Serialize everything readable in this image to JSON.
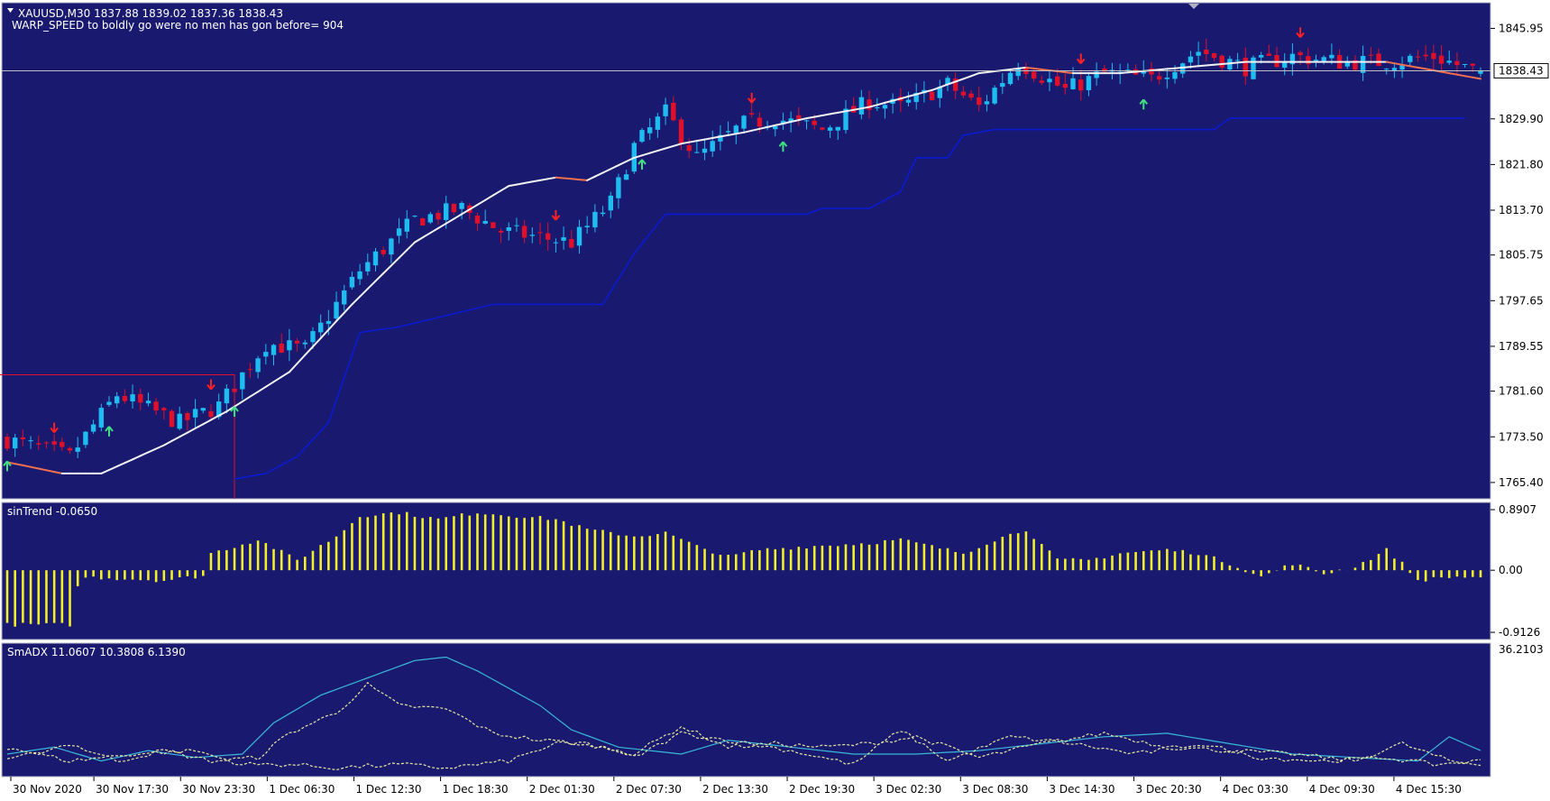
{
  "header": {
    "symbol_line": "XAUUSD,M30  1837.88 1839.02 1837.36 1838.43",
    "indicator_line": "WARP_SPEED to boldly go were no men has gon before= 904"
  },
  "colors": {
    "background": "#191970",
    "bull": "#1ebcf0",
    "bear": "#e0102a",
    "ma": "#f0f0f0",
    "ma_bear": "#f07050",
    "stop_line": "#0a1ad0",
    "histogram": "#f2ee2a",
    "adx_line": "#3ab8d8",
    "di_lines": "#e8e8a0",
    "price_tag_bg": "#ffffff"
  },
  "chart_data": [
    {
      "type": "candlestick",
      "symbol": "XAUUSD",
      "timeframe": "M30",
      "ohlc_last": {
        "open": 1837.88,
        "high": 1839.02,
        "low": 1837.36,
        "close": 1838.43
      },
      "ylim": [
        1762.5,
        1850.5
      ],
      "y_ticks": [
        "1845.95",
        "1838.43",
        "1829.90",
        "1821.80",
        "1813.70",
        "1805.75",
        "1797.65",
        "1789.55",
        "1781.60",
        "1773.50",
        "1765.40"
      ],
      "current_price": "1838.43",
      "x_ticks": [
        "30 Nov 2020",
        "30 Nov 17:30",
        "30 Nov 23:30",
        "1 Dec 06:30",
        "1 Dec 12:30",
        "1 Dec 18:30",
        "2 Dec 01:30",
        "2 Dec 07:30",
        "2 Dec 13:30",
        "2 Dec 19:30",
        "3 Dec 02:30",
        "3 Dec 08:30",
        "3 Dec 14:30",
        "3 Dec 20:30",
        "4 Dec 03:30",
        "4 Dec 09:30",
        "4 Dec 15:30"
      ],
      "close_path": [
        [
          0,
          1773
        ],
        [
          8,
          1770
        ],
        [
          14,
          1781
        ],
        [
          22,
          1776
        ],
        [
          27,
          1779
        ],
        [
          33,
          1790
        ],
        [
          38,
          1789
        ],
        [
          45,
          1803
        ],
        [
          52,
          1812
        ],
        [
          58,
          1814
        ],
        [
          63,
          1810
        ],
        [
          72,
          1808
        ],
        [
          77,
          1815
        ],
        [
          80,
          1825
        ],
        [
          84,
          1831
        ],
        [
          88,
          1823
        ],
        [
          94,
          1829
        ],
        [
          98,
          1830
        ],
        [
          104,
          1828
        ],
        [
          110,
          1833
        ],
        [
          114,
          1832
        ],
        [
          120,
          1836
        ],
        [
          124,
          1832
        ],
        [
          129,
          1840
        ],
        [
          135,
          1835
        ],
        [
          140,
          1838
        ],
        [
          146,
          1837
        ],
        [
          152,
          1842
        ],
        [
          158,
          1839
        ],
        [
          164,
          1841
        ],
        [
          170,
          1840
        ],
        [
          176,
          1840
        ],
        [
          182,
          1841
        ],
        [
          188,
          1838
        ]
      ],
      "moving_average": [
        [
          0,
          1769
        ],
        [
          7,
          1767
        ],
        [
          12,
          1767
        ],
        [
          20,
          1772
        ],
        [
          28,
          1778
        ],
        [
          36,
          1785
        ],
        [
          44,
          1797
        ],
        [
          52,
          1808
        ],
        [
          58,
          1813
        ],
        [
          64,
          1818
        ],
        [
          70,
          1819.5
        ],
        [
          74,
          1819
        ],
        [
          80,
          1823
        ],
        [
          86,
          1825.5
        ],
        [
          94,
          1827.5
        ],
        [
          102,
          1830
        ],
        [
          110,
          1832
        ],
        [
          118,
          1835
        ],
        [
          124,
          1838
        ],
        [
          130,
          1839
        ],
        [
          136,
          1838
        ],
        [
          142,
          1838
        ],
        [
          150,
          1839
        ],
        [
          158,
          1840
        ],
        [
          164,
          1840
        ],
        [
          170,
          1840
        ],
        [
          176,
          1840
        ],
        [
          182,
          1838.5
        ],
        [
          188,
          1837
        ]
      ],
      "stop_line": [
        [
          29,
          1766
        ],
        [
          33,
          1767
        ],
        [
          37,
          1770
        ],
        [
          41,
          1776
        ],
        [
          45,
          1792
        ],
        [
          50,
          1793
        ],
        [
          56,
          1795
        ],
        [
          62,
          1797
        ],
        [
          76,
          1797
        ],
        [
          80,
          1806
        ],
        [
          84,
          1813
        ],
        [
          102,
          1813
        ],
        [
          104,
          1814
        ],
        [
          110,
          1814
        ],
        [
          114,
          1817
        ],
        [
          116,
          1823
        ],
        [
          118,
          1823
        ],
        [
          120,
          1823
        ],
        [
          122,
          1827
        ],
        [
          126,
          1828
        ],
        [
          154,
          1828
        ],
        [
          156,
          1830
        ],
        [
          186,
          1830
        ]
      ],
      "buy_arrows": [
        0,
        13,
        29,
        81,
        99,
        145
      ],
      "sell_arrows": [
        6,
        26,
        70,
        95,
        137,
        165
      ],
      "highlight_box": {
        "x_from": 0,
        "x_to": 29,
        "top": 1784.5
      }
    },
    {
      "type": "bar",
      "name": "sinTrend",
      "value": "-0.0650",
      "ylim": [
        -0.9126,
        0.8907
      ],
      "y_ticks": [
        "0.8907",
        "0.00",
        "-0.9126"
      ],
      "profile": [
        [
          0,
          -0.8
        ],
        [
          8,
          -0.8
        ],
        [
          9,
          -0.25
        ],
        [
          10,
          -0.1
        ],
        [
          14,
          -0.12
        ],
        [
          20,
          -0.15
        ],
        [
          25,
          -0.08
        ],
        [
          26,
          0.25
        ],
        [
          32,
          0.45
        ],
        [
          37,
          0.15
        ],
        [
          42,
          0.5
        ],
        [
          45,
          0.8
        ],
        [
          50,
          0.85
        ],
        [
          55,
          0.75
        ],
        [
          60,
          0.85
        ],
        [
          70,
          0.75
        ],
        [
          74,
          0.6
        ],
        [
          80,
          0.5
        ],
        [
          84,
          0.55
        ],
        [
          88,
          0.35
        ],
        [
          92,
          0.2
        ],
        [
          96,
          0.3
        ],
        [
          102,
          0.35
        ],
        [
          110,
          0.4
        ],
        [
          114,
          0.45
        ],
        [
          118,
          0.35
        ],
        [
          122,
          0.25
        ],
        [
          126,
          0.45
        ],
        [
          130,
          0.6
        ],
        [
          134,
          0.15
        ],
        [
          138,
          0.15
        ],
        [
          142,
          0.25
        ],
        [
          148,
          0.3
        ],
        [
          152,
          0.25
        ],
        [
          156,
          0.1
        ],
        [
          160,
          -0.1
        ],
        [
          164,
          0.1
        ],
        [
          168,
          -0.05
        ],
        [
          172,
          0.05
        ],
        [
          176,
          0.3
        ],
        [
          178,
          0.1
        ],
        [
          180,
          -0.15
        ],
        [
          184,
          -0.1
        ],
        [
          188,
          -0.1
        ]
      ]
    },
    {
      "type": "line",
      "name": "SmADX",
      "values": [
        "11.0607",
        "10.3808",
        "6.1390"
      ],
      "ylim": [
        0,
        36.2103
      ],
      "y_ticks": [
        "36.2103"
      ],
      "series": [
        {
          "points": [
            [
              0,
              6
            ],
            [
              6,
              8
            ],
            [
              12,
              4
            ],
            [
              18,
              7
            ],
            [
              24,
              5
            ],
            [
              30,
              6
            ],
            [
              34,
              15
            ],
            [
              40,
              23
            ],
            [
              46,
              28
            ],
            [
              52,
              33
            ],
            [
              56,
              34
            ],
            [
              60,
              30
            ],
            [
              64,
              25
            ],
            [
              68,
              20
            ],
            [
              72,
              13
            ],
            [
              78,
              8
            ],
            [
              86,
              6
            ],
            [
              92,
              10
            ],
            [
              100,
              8
            ],
            [
              108,
              6
            ],
            [
              116,
              6
            ],
            [
              124,
              7
            ],
            [
              132,
              9
            ],
            [
              140,
              11
            ],
            [
              148,
              12
            ],
            [
              156,
              9
            ],
            [
              164,
              6
            ],
            [
              172,
              5
            ],
            [
              180,
              4
            ],
            [
              184,
              11
            ],
            [
              188,
              7
            ]
          ]
        },
        {
          "points": [
            [
              0,
              4
            ],
            [
              8,
              9
            ],
            [
              14,
              4
            ],
            [
              20,
              7
            ],
            [
              26,
              4
            ],
            [
              32,
              5
            ],
            [
              36,
              12
            ],
            [
              42,
              18
            ],
            [
              46,
              26
            ],
            [
              50,
              20
            ],
            [
              56,
              19
            ],
            [
              62,
              12
            ],
            [
              68,
              10
            ],
            [
              74,
              9
            ],
            [
              80,
              6
            ],
            [
              86,
              14
            ],
            [
              92,
              8
            ],
            [
              98,
              9
            ],
            [
              104,
              8
            ],
            [
              110,
              9
            ],
            [
              116,
              11
            ],
            [
              124,
              5
            ],
            [
              132,
              9
            ],
            [
              140,
              12
            ],
            [
              148,
              8
            ],
            [
              156,
              7
            ],
            [
              164,
              6
            ],
            [
              172,
              4
            ],
            [
              178,
              9
            ],
            [
              184,
              4
            ],
            [
              188,
              3
            ]
          ]
        },
        {
          "points": [
            [
              0,
              8
            ],
            [
              8,
              4
            ],
            [
              16,
              6
            ],
            [
              24,
              7
            ],
            [
              30,
              3
            ],
            [
              36,
              3
            ],
            [
              42,
              2
            ],
            [
              50,
              3
            ],
            [
              56,
              2
            ],
            [
              64,
              4
            ],
            [
              70,
              9
            ],
            [
              76,
              8
            ],
            [
              80,
              5
            ],
            [
              86,
              12
            ],
            [
              92,
              10
            ],
            [
              100,
              7
            ],
            [
              108,
              3
            ],
            [
              114,
              13
            ],
            [
              120,
              4
            ],
            [
              128,
              11
            ],
            [
              136,
              9
            ],
            [
              144,
              6
            ],
            [
              152,
              9
            ],
            [
              160,
              5
            ],
            [
              168,
              4
            ],
            [
              176,
              5
            ],
            [
              182,
              3
            ],
            [
              188,
              4
            ]
          ]
        }
      ]
    }
  ]
}
